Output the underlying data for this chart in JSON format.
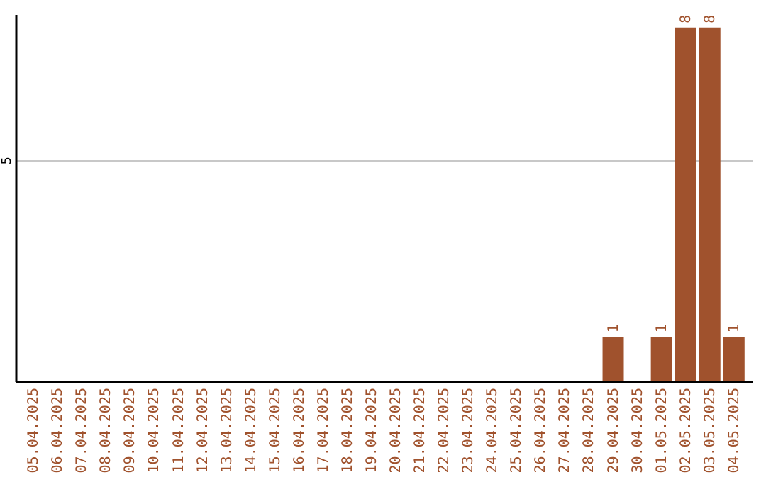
{
  "chart_data": {
    "type": "bar",
    "categories": [
      "05.04.2025",
      "06.04.2025",
      "07.04.2025",
      "08.04.2025",
      "09.04.2025",
      "10.04.2025",
      "11.04.2025",
      "12.04.2025",
      "13.04.2025",
      "14.04.2025",
      "15.04.2025",
      "16.04.2025",
      "17.04.2025",
      "18.04.2025",
      "19.04.2025",
      "20.04.2025",
      "21.04.2025",
      "22.04.2025",
      "23.04.2025",
      "24.04.2025",
      "25.04.2025",
      "26.04.2025",
      "27.04.2025",
      "28.04.2025",
      "29.04.2025",
      "30.04.2025",
      "01.05.2025",
      "02.05.2025",
      "03.05.2025",
      "04.05.2025"
    ],
    "values": [
      null,
      null,
      null,
      null,
      null,
      null,
      null,
      null,
      null,
      null,
      null,
      null,
      null,
      null,
      null,
      null,
      null,
      null,
      null,
      null,
      null,
      null,
      null,
      null,
      1,
      null,
      1,
      8,
      8,
      1
    ],
    "data_labels": true,
    "color": "#a0522d",
    "ylim": [
      0,
      8.3
    ],
    "yticks": [
      5
    ],
    "grid": "y"
  }
}
